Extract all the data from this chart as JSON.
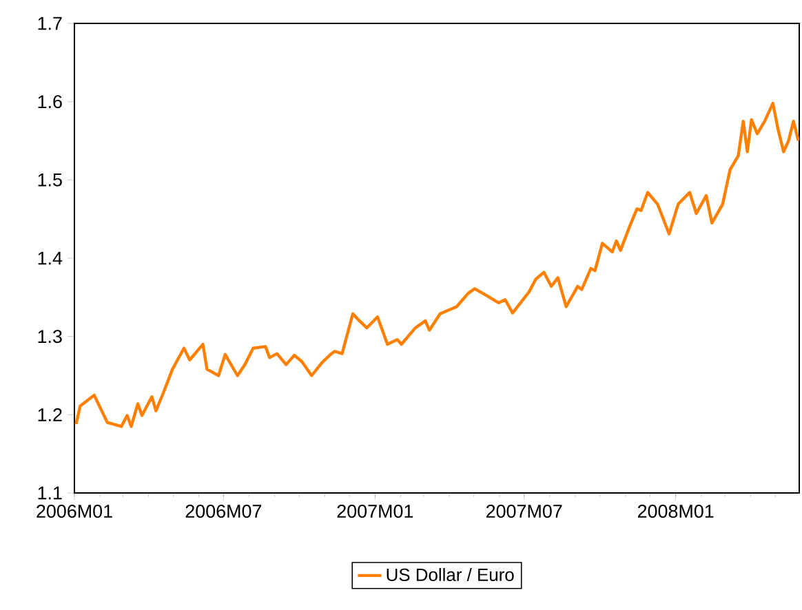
{
  "chart_data": {
    "type": "line",
    "x": [
      "2006-01-03",
      "2006-01-08",
      "2006-01-25",
      "2006-02-10",
      "2006-02-27",
      "2006-03-06",
      "2006-03-11",
      "2006-03-19",
      "2006-03-24",
      "2006-04-05",
      "2006-04-10",
      "2006-04-19",
      "2006-04-30",
      "2006-05-14",
      "2006-05-21",
      "2006-06-06",
      "2006-06-11",
      "2006-06-25",
      "2006-07-03",
      "2006-07-18",
      "2006-07-27",
      "2006-08-06",
      "2006-08-21",
      "2006-08-26",
      "2006-09-04",
      "2006-09-15",
      "2006-09-25",
      "2006-10-04",
      "2006-10-16",
      "2006-10-29",
      "2006-11-08",
      "2006-11-13",
      "2006-11-22",
      "2006-12-05",
      "2006-12-13",
      "2006-12-22",
      "2007-01-04",
      "2007-01-16",
      "2007-01-28",
      "2007-02-02",
      "2007-02-19",
      "2007-03-03",
      "2007-03-08",
      "2007-03-21",
      "2007-04-10",
      "2007-04-24",
      "2007-05-02",
      "2007-05-17",
      "2007-05-31",
      "2007-06-08",
      "2007-06-17",
      "2007-07-07",
      "2007-07-15",
      "2007-07-25",
      "2007-08-03",
      "2007-08-11",
      "2007-08-21",
      "2007-09-04",
      "2007-09-09",
      "2007-09-20",
      "2007-09-25",
      "2007-10-04",
      "2007-10-16",
      "2007-10-21",
      "2007-10-26",
      "2007-11-07",
      "2007-11-15",
      "2007-11-20",
      "2007-11-28",
      "2007-12-10",
      "2007-12-24",
      "2008-01-04",
      "2008-01-18",
      "2008-01-26",
      "2008-02-07",
      "2008-02-14",
      "2008-02-27",
      "2008-03-07",
      "2008-03-17",
      "2008-03-23",
      "2008-03-28",
      "2008-04-02",
      "2008-04-09",
      "2008-04-18",
      "2008-04-28",
      "2008-05-04",
      "2008-05-11",
      "2008-05-17",
      "2008-05-23",
      "2008-05-29"
    ],
    "series": [
      {
        "name": "US Dollar / Euro",
        "color": "#ff8000",
        "values": [
          1.188,
          1.211,
          1.225,
          1.19,
          1.185,
          1.199,
          1.185,
          1.214,
          1.199,
          1.223,
          1.205,
          1.228,
          1.258,
          1.285,
          1.27,
          1.29,
          1.258,
          1.25,
          1.277,
          1.25,
          1.264,
          1.285,
          1.287,
          1.273,
          1.278,
          1.264,
          1.276,
          1.268,
          1.25,
          1.267,
          1.277,
          1.281,
          1.278,
          1.329,
          1.32,
          1.311,
          1.325,
          1.29,
          1.296,
          1.29,
          1.311,
          1.32,
          1.308,
          1.329,
          1.338,
          1.355,
          1.361,
          1.352,
          1.343,
          1.347,
          1.33,
          1.357,
          1.373,
          1.382,
          1.364,
          1.375,
          1.338,
          1.364,
          1.36,
          1.387,
          1.384,
          1.419,
          1.408,
          1.422,
          1.41,
          1.443,
          1.463,
          1.461,
          1.484,
          1.469,
          1.431,
          1.469,
          1.484,
          1.457,
          1.48,
          1.445,
          1.469,
          1.513,
          1.531,
          1.575,
          1.536,
          1.577,
          1.559,
          1.575,
          1.598,
          1.566,
          1.536,
          1.55,
          1.575,
          1.55
        ]
      }
    ],
    "xlim": [
      "2006-01-01",
      "2008-05-30"
    ],
    "xticks": [
      {
        "value": "2006-01-01",
        "label": "2006M01"
      },
      {
        "value": "2006-07-01",
        "label": "2006M07"
      },
      {
        "value": "2007-01-01",
        "label": "2007M01"
      },
      {
        "value": "2007-07-01",
        "label": "2007M07"
      },
      {
        "value": "2008-01-01",
        "label": "2008M01"
      }
    ],
    "ylim": [
      1.1,
      1.7
    ],
    "yticks": [
      1.1,
      1.2,
      1.3,
      1.4,
      1.5,
      1.6,
      1.7
    ],
    "legend": "bottom",
    "marker": "none",
    "line_style": "solid"
  }
}
